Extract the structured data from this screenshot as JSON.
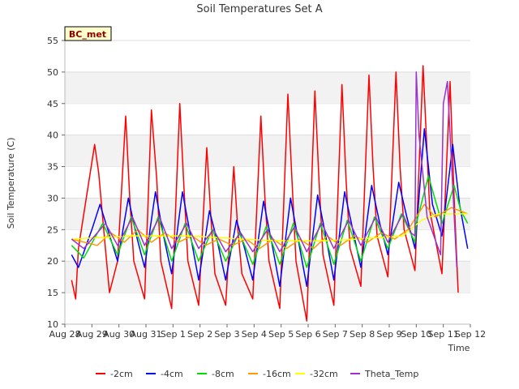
{
  "chart_data": {
    "type": "line",
    "title": "Soil Temperatures Set A",
    "xlabel": "Time",
    "ylabel": "Soil Temperature (C)",
    "ylim": [
      10,
      55
    ],
    "yticks": [
      10,
      15,
      20,
      25,
      30,
      35,
      40,
      45,
      50,
      55
    ],
    "xlim": [
      "2023-08-28",
      "2023-09-12"
    ],
    "xticks": [
      "Aug 28",
      "Aug 29",
      "Aug 30",
      "Aug 31",
      "Sep 1",
      "Sep 2",
      "Sep 3",
      "Sep 4",
      "Sep 5",
      "Sep 6",
      "Sep 7",
      "Sep 8",
      "Sep 9",
      "Sep 10",
      "Sep 11",
      "Sep 12"
    ],
    "grid": "horizontal bands",
    "legend_position": "bottom",
    "badge": "BC_met",
    "series": [
      {
        "name": "-2cm",
        "color": "#ff0000",
        "x": [
          "Aug 28",
          "Aug 28",
          "Aug 28",
          "Aug 29",
          "Aug 29",
          "Aug 29",
          "Aug 29",
          "Aug 29",
          "Aug 30",
          "Aug 30",
          "Aug 30",
          "Aug 30",
          "Aug 31",
          "Aug 31",
          "Aug 31",
          "Aug 31",
          "Sep 1",
          "Sep 1",
          "Sep 1",
          "Sep 1",
          "Sep 2",
          "Sep 2",
          "Sep 2",
          "Sep 2",
          "Sep 3",
          "Sep 3",
          "Sep 3",
          "Sep 3",
          "Sep 4",
          "Sep 4",
          "Sep 4",
          "Sep 4",
          "Sep 5",
          "Sep 5",
          "Sep 5",
          "Sep 5",
          "Sep 6",
          "Sep 6",
          "Sep 6",
          "Sep 6",
          "Sep 7",
          "Sep 7",
          "Sep 7",
          "Sep 7",
          "Sep 8",
          "Sep 8",
          "Sep 8",
          "Sep 8",
          "Sep 9",
          "Sep 9",
          "Sep 9",
          "Sep 9",
          "Sep 10",
          "Sep 10",
          "Sep 10",
          "Sep 10",
          "Sep 11",
          "Sep 11",
          "Sep 11"
        ],
        "x_frac": [
          0.25,
          0.4,
          0.5,
          0.1,
          0.25,
          0.5,
          0.65,
          0.95,
          0.25,
          0.4,
          0.55,
          0.95,
          0.2,
          0.4,
          0.55,
          0.95,
          0.25,
          0.4,
          0.55,
          0.95,
          0.25,
          0.4,
          0.55,
          0.95,
          0.25,
          0.4,
          0.55,
          0.95,
          0.25,
          0.4,
          0.55,
          0.95,
          0.25,
          0.4,
          0.55,
          0.95,
          0.25,
          0.4,
          0.55,
          0.95,
          0.25,
          0.4,
          0.55,
          0.95,
          0.25,
          0.4,
          0.55,
          0.95,
          0.25,
          0.4,
          0.55,
          0.95,
          0.25,
          0.4,
          0.5,
          0.95,
          0.25,
          0.4,
          0.55
        ],
        "values": [
          17,
          14,
          22,
          38.5,
          34,
          22,
          15,
          20,
          43,
          30,
          20,
          14,
          44,
          33,
          20,
          12.5,
          45,
          32,
          20,
          13,
          38,
          27,
          18,
          13,
          35,
          25,
          18,
          14,
          43,
          30,
          20,
          12.5,
          46.5,
          33,
          20,
          10.5,
          47,
          33,
          21,
          13,
          48,
          33,
          22,
          16,
          49.5,
          35,
          24,
          17.5,
          50,
          35,
          25,
          18.5,
          51,
          37,
          28,
          18,
          48.5,
          30,
          15
        ]
      },
      {
        "name": "-4cm",
        "color": "#0000ff",
        "x": [
          "Aug 28",
          "Aug 28",
          "Aug 29",
          "Aug 29",
          "Aug 29",
          "Aug 30",
          "Aug 30",
          "Aug 30",
          "Aug 31",
          "Aug 31",
          "Aug 31",
          "Sep 1",
          "Sep 1",
          "Sep 1",
          "Sep 2",
          "Sep 2",
          "Sep 2",
          "Sep 3",
          "Sep 3",
          "Sep 3",
          "Sep 4",
          "Sep 4",
          "Sep 4",
          "Sep 5",
          "Sep 5",
          "Sep 5",
          "Sep 6",
          "Sep 6",
          "Sep 6",
          "Sep 7",
          "Sep 7",
          "Sep 7",
          "Sep 8",
          "Sep 8",
          "Sep 8",
          "Sep 9",
          "Sep 9",
          "Sep 9",
          "Sep 10",
          "Sep 10",
          "Sep 10",
          "Sep 11",
          "Sep 11",
          "Sep 11"
        ],
        "x_frac": [
          0.25,
          0.5,
          0.0,
          0.3,
          0.95,
          0.35,
          0.65,
          0.95,
          0.35,
          0.65,
          0.95,
          0.35,
          0.65,
          0.95,
          0.35,
          0.65,
          0.95,
          0.35,
          0.65,
          0.95,
          0.35,
          0.65,
          0.95,
          0.35,
          0.65,
          0.95,
          0.35,
          0.65,
          0.95,
          0.35,
          0.65,
          0.95,
          0.35,
          0.65,
          0.95,
          0.35,
          0.65,
          0.95,
          0.3,
          0.6,
          0.95,
          0.35,
          0.6,
          0.9
        ],
        "values": [
          21,
          19,
          25,
          29,
          20,
          30,
          24,
          19,
          31,
          24,
          18,
          31,
          24,
          17,
          28,
          23,
          17,
          26.5,
          22,
          17,
          29.5,
          23,
          16,
          30,
          23,
          16,
          30.5,
          24,
          17,
          31,
          25,
          19,
          32,
          26,
          21,
          32.5,
          27,
          22,
          41,
          29,
          24,
          38.5,
          29,
          22
        ]
      },
      {
        "name": "-8cm",
        "color": "#00dd00",
        "x": [
          "Aug 28",
          "Aug 28",
          "Aug 29",
          "Aug 29",
          "Aug 30",
          "Aug 30",
          "Aug 31",
          "Aug 31",
          "Sep 1",
          "Sep 1",
          "Sep 2",
          "Sep 2",
          "Sep 3",
          "Sep 3",
          "Sep 4",
          "Sep 4",
          "Sep 5",
          "Sep 5",
          "Sep 6",
          "Sep 6",
          "Sep 7",
          "Sep 7",
          "Sep 8",
          "Sep 8",
          "Sep 9",
          "Sep 9",
          "Sep 10",
          "Sep 10",
          "Sep 10",
          "Sep 11",
          "Sep 11",
          "Sep 11"
        ],
        "x_frac": [
          0.25,
          0.7,
          0.4,
          0.95,
          0.45,
          0.95,
          0.45,
          0.95,
          0.45,
          0.95,
          0.45,
          0.95,
          0.45,
          0.95,
          0.45,
          0.95,
          0.45,
          0.95,
          0.45,
          0.95,
          0.45,
          0.95,
          0.45,
          0.95,
          0.45,
          0.95,
          0.0,
          0.45,
          0.95,
          0.4,
          0.65,
          0.9
        ],
        "values": [
          22.5,
          20.5,
          26,
          21,
          27,
          21,
          27,
          20,
          26,
          20,
          25,
          20,
          24.5,
          19.5,
          25.5,
          19.5,
          26,
          19,
          26,
          19.5,
          26.5,
          20,
          27,
          22,
          27.5,
          23,
          26,
          33.5,
          26,
          32,
          28,
          26
        ]
      },
      {
        "name": "-16cm",
        "color": "#ff9900",
        "x": [
          "Aug 28",
          "Aug 29",
          "Aug 29",
          "Aug 30",
          "Aug 30",
          "Aug 31",
          "Aug 31",
          "Sep 1",
          "Sep 1",
          "Sep 2",
          "Sep 2",
          "Sep 3",
          "Sep 3",
          "Sep 4",
          "Sep 4",
          "Sep 5",
          "Sep 5",
          "Sep 6",
          "Sep 6",
          "Sep 7",
          "Sep 7",
          "Sep 8",
          "Sep 8",
          "Sep 9",
          "Sep 9",
          "Sep 10",
          "Sep 10",
          "Sep 11",
          "Sep 11"
        ],
        "x_frac": [
          0.25,
          0.2,
          0.7,
          0.2,
          0.7,
          0.2,
          0.7,
          0.2,
          0.7,
          0.2,
          0.7,
          0.2,
          0.7,
          0.2,
          0.7,
          0.2,
          0.7,
          0.2,
          0.7,
          0.2,
          0.7,
          0.2,
          0.7,
          0.2,
          0.7,
          0.3,
          0.7,
          0.3,
          0.9
        ],
        "values": [
          23.5,
          22.5,
          24.5,
          23,
          25,
          23,
          24.5,
          23,
          24,
          22.5,
          23.5,
          22.5,
          23.5,
          22,
          23.5,
          22,
          23.5,
          22,
          24,
          22.5,
          24,
          23,
          24.5,
          23.5,
          25,
          29,
          27,
          28.5,
          27.5
        ]
      },
      {
        "name": "-32cm",
        "color": "#ffff00",
        "x": [
          "Aug 28",
          "Aug 29",
          "Aug 30",
          "Aug 31",
          "Sep 1",
          "Sep 2",
          "Sep 3",
          "Sep 4",
          "Sep 5",
          "Sep 6",
          "Sep 7",
          "Sep 8",
          "Sep 9",
          "Sep 10",
          "Sep 10",
          "Sep 11",
          "Sep 11"
        ],
        "x_frac": [
          0.3,
          0.5,
          0.5,
          0.5,
          0.5,
          0.5,
          0.5,
          0.5,
          0.5,
          0.5,
          0.5,
          0.5,
          0.5,
          0.2,
          0.8,
          0.3,
          0.9
        ],
        "values": [
          23.5,
          23.8,
          24,
          24,
          24,
          23.8,
          23.5,
          23.3,
          23.2,
          23.2,
          23.4,
          23.7,
          24,
          26.5,
          27.5,
          27.5,
          27.5
        ]
      },
      {
        "name": "Theta_Temp",
        "color": "#9933cc",
        "x": [
          "Aug 28",
          "Aug 28",
          "Aug 29",
          "Aug 29",
          "Aug 30",
          "Aug 30",
          "Aug 31",
          "Aug 31",
          "Sep 1",
          "Sep 1",
          "Sep 2",
          "Sep 2",
          "Sep 3",
          "Sep 3",
          "Sep 4",
          "Sep 4",
          "Sep 5",
          "Sep 5",
          "Sep 6",
          "Sep 6",
          "Sep 7",
          "Sep 7",
          "Sep 8",
          "Sep 8",
          "Sep 9",
          "Sep 9",
          "Sep 9",
          "Sep 10",
          "Sep 10",
          "Sep 10",
          "Sep 10",
          "Sep 11",
          "Sep 11",
          "Sep 11"
        ],
        "x_frac": [
          0.25,
          0.7,
          0.5,
          0.95,
          0.5,
          0.95,
          0.5,
          0.95,
          0.5,
          0.95,
          0.5,
          0.95,
          0.5,
          0.95,
          0.5,
          0.95,
          0.5,
          0.95,
          0.5,
          0.95,
          0.5,
          0.95,
          0.5,
          0.95,
          0.5,
          0.8,
          0.95,
          0.0,
          0.1,
          0.4,
          0.9,
          0.0,
          0.15,
          0.5
        ],
        "values": [
          23.5,
          22,
          26,
          22.5,
          27,
          22.5,
          27,
          22,
          26,
          22,
          25,
          21.5,
          24.5,
          21.5,
          25,
          21.5,
          25.5,
          21.5,
          26,
          22,
          26.5,
          22.5,
          27,
          23,
          27.5,
          24.5,
          24,
          50,
          40,
          27,
          21,
          45,
          48.5,
          19
        ]
      }
    ]
  }
}
